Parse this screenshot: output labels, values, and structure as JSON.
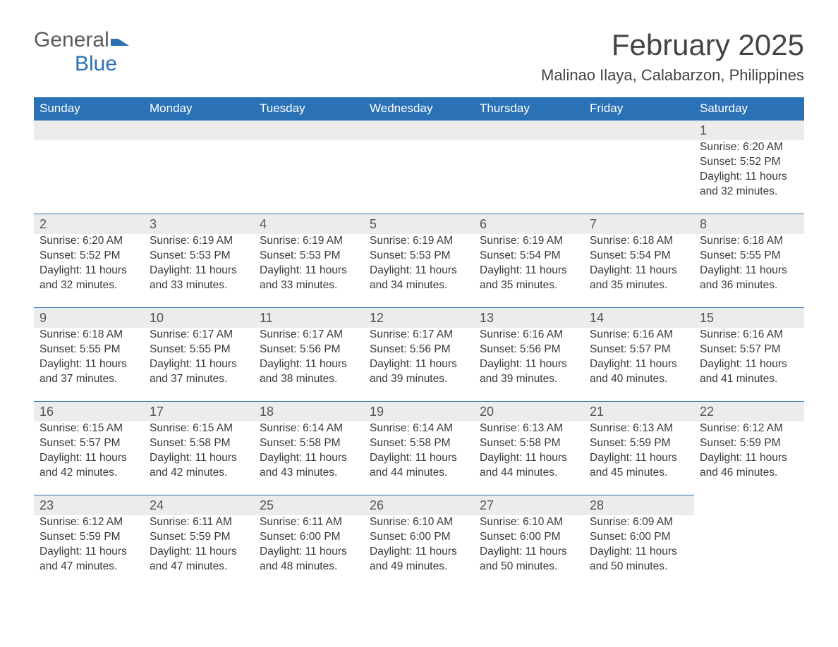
{
  "logo": {
    "word1": "General",
    "word2": "Blue"
  },
  "title": "February 2025",
  "location": "Malinao Ilaya, Calabarzon, Philippines",
  "colors": {
    "header_bg": "#2a72b5",
    "header_text": "#ffffff",
    "daynum_bg": "#ececec",
    "daynum_border": "#2a72b5",
    "body_text": "#3a3a3a",
    "logo_gray": "#5b5b5b",
    "logo_blue": "#2a72b5"
  },
  "weekday_labels": [
    "Sunday",
    "Monday",
    "Tuesday",
    "Wednesday",
    "Thursday",
    "Friday",
    "Saturday"
  ],
  "weeks": [
    [
      null,
      null,
      null,
      null,
      null,
      null,
      {
        "n": "1",
        "sr": "Sunrise: 6:20 AM",
        "ss": "Sunset: 5:52 PM",
        "d1": "Daylight: 11 hours",
        "d2": "and 32 minutes."
      }
    ],
    [
      {
        "n": "2",
        "sr": "Sunrise: 6:20 AM",
        "ss": "Sunset: 5:52 PM",
        "d1": "Daylight: 11 hours",
        "d2": "and 32 minutes."
      },
      {
        "n": "3",
        "sr": "Sunrise: 6:19 AM",
        "ss": "Sunset: 5:53 PM",
        "d1": "Daylight: 11 hours",
        "d2": "and 33 minutes."
      },
      {
        "n": "4",
        "sr": "Sunrise: 6:19 AM",
        "ss": "Sunset: 5:53 PM",
        "d1": "Daylight: 11 hours",
        "d2": "and 33 minutes."
      },
      {
        "n": "5",
        "sr": "Sunrise: 6:19 AM",
        "ss": "Sunset: 5:53 PM",
        "d1": "Daylight: 11 hours",
        "d2": "and 34 minutes."
      },
      {
        "n": "6",
        "sr": "Sunrise: 6:19 AM",
        "ss": "Sunset: 5:54 PM",
        "d1": "Daylight: 11 hours",
        "d2": "and 35 minutes."
      },
      {
        "n": "7",
        "sr": "Sunrise: 6:18 AM",
        "ss": "Sunset: 5:54 PM",
        "d1": "Daylight: 11 hours",
        "d2": "and 35 minutes."
      },
      {
        "n": "8",
        "sr": "Sunrise: 6:18 AM",
        "ss": "Sunset: 5:55 PM",
        "d1": "Daylight: 11 hours",
        "d2": "and 36 minutes."
      }
    ],
    [
      {
        "n": "9",
        "sr": "Sunrise: 6:18 AM",
        "ss": "Sunset: 5:55 PM",
        "d1": "Daylight: 11 hours",
        "d2": "and 37 minutes."
      },
      {
        "n": "10",
        "sr": "Sunrise: 6:17 AM",
        "ss": "Sunset: 5:55 PM",
        "d1": "Daylight: 11 hours",
        "d2": "and 37 minutes."
      },
      {
        "n": "11",
        "sr": "Sunrise: 6:17 AM",
        "ss": "Sunset: 5:56 PM",
        "d1": "Daylight: 11 hours",
        "d2": "and 38 minutes."
      },
      {
        "n": "12",
        "sr": "Sunrise: 6:17 AM",
        "ss": "Sunset: 5:56 PM",
        "d1": "Daylight: 11 hours",
        "d2": "and 39 minutes."
      },
      {
        "n": "13",
        "sr": "Sunrise: 6:16 AM",
        "ss": "Sunset: 5:56 PM",
        "d1": "Daylight: 11 hours",
        "d2": "and 39 minutes."
      },
      {
        "n": "14",
        "sr": "Sunrise: 6:16 AM",
        "ss": "Sunset: 5:57 PM",
        "d1": "Daylight: 11 hours",
        "d2": "and 40 minutes."
      },
      {
        "n": "15",
        "sr": "Sunrise: 6:16 AM",
        "ss": "Sunset: 5:57 PM",
        "d1": "Daylight: 11 hours",
        "d2": "and 41 minutes."
      }
    ],
    [
      {
        "n": "16",
        "sr": "Sunrise: 6:15 AM",
        "ss": "Sunset: 5:57 PM",
        "d1": "Daylight: 11 hours",
        "d2": "and 42 minutes."
      },
      {
        "n": "17",
        "sr": "Sunrise: 6:15 AM",
        "ss": "Sunset: 5:58 PM",
        "d1": "Daylight: 11 hours",
        "d2": "and 42 minutes."
      },
      {
        "n": "18",
        "sr": "Sunrise: 6:14 AM",
        "ss": "Sunset: 5:58 PM",
        "d1": "Daylight: 11 hours",
        "d2": "and 43 minutes."
      },
      {
        "n": "19",
        "sr": "Sunrise: 6:14 AM",
        "ss": "Sunset: 5:58 PM",
        "d1": "Daylight: 11 hours",
        "d2": "and 44 minutes."
      },
      {
        "n": "20",
        "sr": "Sunrise: 6:13 AM",
        "ss": "Sunset: 5:58 PM",
        "d1": "Daylight: 11 hours",
        "d2": "and 44 minutes."
      },
      {
        "n": "21",
        "sr": "Sunrise: 6:13 AM",
        "ss": "Sunset: 5:59 PM",
        "d1": "Daylight: 11 hours",
        "d2": "and 45 minutes."
      },
      {
        "n": "22",
        "sr": "Sunrise: 6:12 AM",
        "ss": "Sunset: 5:59 PM",
        "d1": "Daylight: 11 hours",
        "d2": "and 46 minutes."
      }
    ],
    [
      {
        "n": "23",
        "sr": "Sunrise: 6:12 AM",
        "ss": "Sunset: 5:59 PM",
        "d1": "Daylight: 11 hours",
        "d2": "and 47 minutes."
      },
      {
        "n": "24",
        "sr": "Sunrise: 6:11 AM",
        "ss": "Sunset: 5:59 PM",
        "d1": "Daylight: 11 hours",
        "d2": "and 47 minutes."
      },
      {
        "n": "25",
        "sr": "Sunrise: 6:11 AM",
        "ss": "Sunset: 6:00 PM",
        "d1": "Daylight: 11 hours",
        "d2": "and 48 minutes."
      },
      {
        "n": "26",
        "sr": "Sunrise: 6:10 AM",
        "ss": "Sunset: 6:00 PM",
        "d1": "Daylight: 11 hours",
        "d2": "and 49 minutes."
      },
      {
        "n": "27",
        "sr": "Sunrise: 6:10 AM",
        "ss": "Sunset: 6:00 PM",
        "d1": "Daylight: 11 hours",
        "d2": "and 50 minutes."
      },
      {
        "n": "28",
        "sr": "Sunrise: 6:09 AM",
        "ss": "Sunset: 6:00 PM",
        "d1": "Daylight: 11 hours",
        "d2": "and 50 minutes."
      },
      null
    ]
  ]
}
